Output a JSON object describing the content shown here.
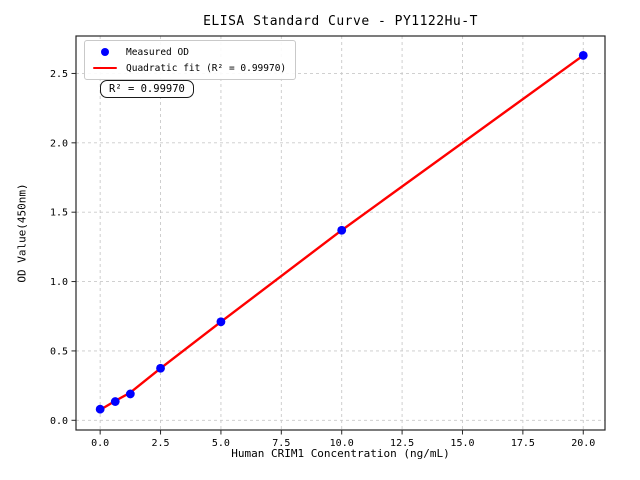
{
  "title": "ELISA Standard Curve - PY1122Hu-T",
  "axes": {
    "x_label": "Human CRIM1 Concentration (ng/mL)",
    "y_label": "OD Value(450nm)"
  },
  "legend": {
    "items": [
      {
        "label": "Measured OD",
        "marker": "dot",
        "color": "#0000ff"
      },
      {
        "label": "Quadratic fit (R² = 0.99970)",
        "marker": "line",
        "color": "#ff0000"
      }
    ]
  },
  "annotation": {
    "text": "R² = 0.99970"
  },
  "colors": {
    "point": "#0000ff",
    "fit_line": "#ff0000",
    "grid": "#c9c9c9",
    "spine": "#262626",
    "tick": "#262626"
  },
  "chart_data": {
    "type": "scatter",
    "title": "ELISA Standard Curve - PY1122Hu-T",
    "xlabel": "Human CRIM1 Concentration (ng/mL)",
    "ylabel": "OD Value(450nm)",
    "series": [
      {
        "name": "Measured OD",
        "type": "scatter",
        "color": "#0000ff",
        "x": [
          0,
          0.625,
          1.25,
          2.5,
          5,
          10,
          20
        ],
        "y": [
          0.08,
          0.135,
          0.19,
          0.375,
          0.71,
          1.37,
          2.63
        ]
      },
      {
        "name": "Quadratic fit (R² = 0.99970)",
        "type": "line",
        "color": "#ff0000",
        "x": [
          0,
          0.625,
          1.25,
          2.5,
          5,
          10,
          20
        ],
        "y": [
          0.075,
          0.14,
          0.2,
          0.375,
          0.71,
          1.37,
          2.63
        ]
      }
    ],
    "fit_type": "quadratic",
    "r_squared": "0.99970",
    "xlim": [
      -1,
      20.9
    ],
    "ylim": [
      -0.07,
      2.77
    ],
    "x_ticks": [
      0,
      2.5,
      5,
      7.5,
      10,
      12.5,
      15,
      17.5,
      20
    ],
    "x_tick_labels": [
      "0.0",
      "2.5",
      "5.0",
      "7.5",
      "10.0",
      "12.5",
      "15.0",
      "17.5",
      "20.0"
    ],
    "y_ticks": [
      0,
      0.5,
      1,
      1.5,
      2,
      2.5
    ],
    "y_tick_labels": [
      "0.0",
      "0.5",
      "1.0",
      "1.5",
      "2.0",
      "2.5"
    ],
    "grid": true,
    "legend_position": "upper left"
  }
}
